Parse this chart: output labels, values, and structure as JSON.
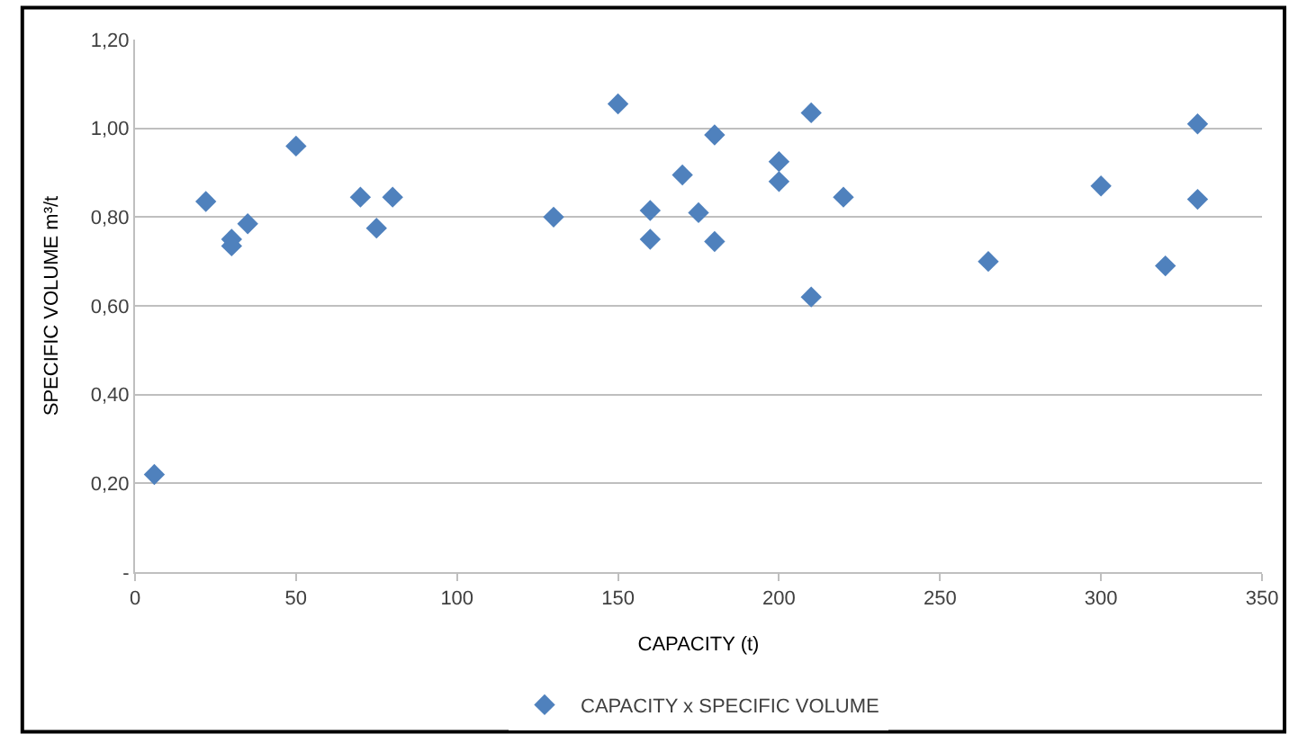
{
  "chart_data": {
    "type": "scatter",
    "xlabel": "CAPACITY (t)",
    "ylabel": "SPECIFIC VOLUME m³/t",
    "x": [
      6,
      22,
      30,
      30,
      35,
      50,
      70,
      75,
      80,
      130,
      150,
      160,
      160,
      170,
      175,
      180,
      180,
      200,
      200,
      210,
      210,
      220,
      265,
      300,
      320,
      330,
      330
    ],
    "series": [
      {
        "name": "CAPACITY x SPECIFIC VOLUME",
        "color": "#4f81bd",
        "values": [
          0.22,
          0.835,
          0.75,
          0.735,
          0.785,
          0.96,
          0.845,
          0.775,
          0.845,
          0.8,
          1.055,
          0.815,
          0.75,
          0.895,
          0.81,
          0.985,
          0.745,
          0.925,
          0.88,
          1.035,
          0.62,
          0.845,
          0.7,
          0.87,
          0.69,
          1.01,
          0.84
        ]
      }
    ],
    "xlim": [
      0,
      350
    ],
    "xticks": [
      0,
      50,
      100,
      150,
      200,
      250,
      300,
      350
    ],
    "ylim": [
      0,
      1.2
    ],
    "yticks": [
      {
        "value": 0,
        "label": "-"
      },
      {
        "value": 0.2,
        "label": "0,20"
      },
      {
        "value": 0.4,
        "label": "0,40"
      },
      {
        "value": 0.6,
        "label": "0,60"
      },
      {
        "value": 0.8,
        "label": "0,80"
      },
      {
        "value": 1.0,
        "label": "1,00"
      },
      {
        "value": 1.2,
        "label": "1,20"
      }
    ],
    "grid": "y",
    "legend": "bottom",
    "marker": "diamond"
  }
}
